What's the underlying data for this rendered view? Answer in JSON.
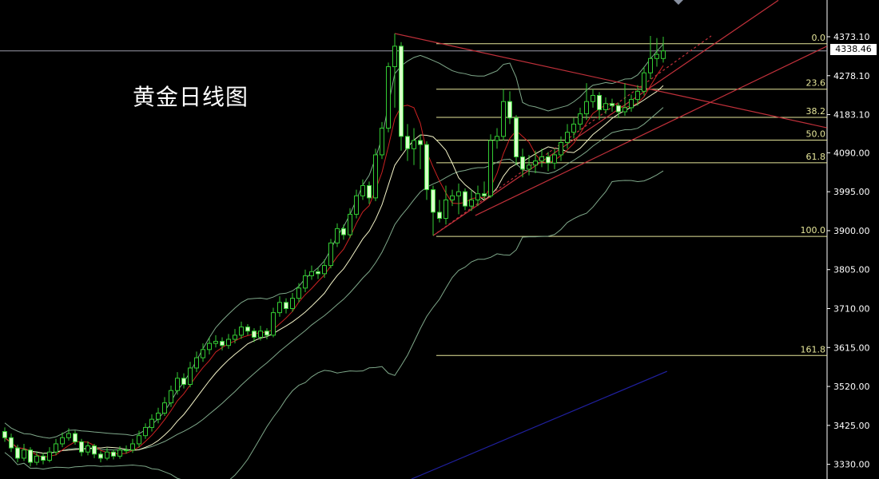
{
  "chart_data": {
    "type": "candlestick",
    "title": "黄金日线图",
    "ylim": [
      3315,
      4465
    ],
    "y_ticks": [
      "4373.10",
      "4278.10",
      "4183.10",
      "4090.00",
      "3995.00",
      "3900.00",
      "3805.00",
      "3710.00",
      "3615.00",
      "3520.00",
      "3425.00",
      "3330.00"
    ],
    "current_price": "4338.46",
    "grid": false,
    "candle_format": [
      "open",
      "high",
      "low",
      "close"
    ],
    "candles": [
      [
        3410,
        3420,
        3385,
        3395
      ],
      [
        3395,
        3405,
        3360,
        3370
      ],
      [
        3370,
        3378,
        3335,
        3345
      ],
      [
        3345,
        3380,
        3338,
        3365
      ],
      [
        3365,
        3372,
        3325,
        3335
      ],
      [
        3335,
        3362,
        3328,
        3350
      ],
      [
        3350,
        3358,
        3330,
        3340
      ],
      [
        3340,
        3372,
        3335,
        3360
      ],
      [
        3360,
        3392,
        3352,
        3380
      ],
      [
        3380,
        3408,
        3372,
        3395
      ],
      [
        3395,
        3418,
        3388,
        3405
      ],
      [
        3405,
        3412,
        3378,
        3385
      ],
      [
        3385,
        3392,
        3350,
        3360
      ],
      [
        3360,
        3386,
        3352,
        3375
      ],
      [
        3375,
        3380,
        3345,
        3355
      ],
      [
        3355,
        3362,
        3335,
        3345
      ],
      [
        3345,
        3370,
        3340,
        3360
      ],
      [
        3360,
        3366,
        3342,
        3350
      ],
      [
        3350,
        3374,
        3344,
        3365
      ],
      [
        3365,
        3376,
        3356,
        3365
      ],
      [
        3365,
        3392,
        3358,
        3380
      ],
      [
        3380,
        3412,
        3372,
        3400
      ],
      [
        3400,
        3430,
        3392,
        3420
      ],
      [
        3420,
        3452,
        3410,
        3440
      ],
      [
        3440,
        3468,
        3430,
        3455
      ],
      [
        3455,
        3494,
        3448,
        3480
      ],
      [
        3480,
        3522,
        3470,
        3510
      ],
      [
        3510,
        3555,
        3500,
        3540
      ],
      [
        3540,
        3552,
        3515,
        3525
      ],
      [
        3525,
        3580,
        3518,
        3565
      ],
      [
        3565,
        3605,
        3555,
        3590
      ],
      [
        3590,
        3625,
        3580,
        3610
      ],
      [
        3610,
        3640,
        3598,
        3625
      ],
      [
        3625,
        3645,
        3615,
        3630
      ],
      [
        3630,
        3640,
        3608,
        3620
      ],
      [
        3620,
        3648,
        3612,
        3635
      ],
      [
        3635,
        3660,
        3625,
        3645
      ],
      [
        3645,
        3678,
        3636,
        3665
      ],
      [
        3665,
        3672,
        3645,
        3655
      ],
      [
        3655,
        3662,
        3628,
        3640
      ],
      [
        3640,
        3668,
        3632,
        3655
      ],
      [
        3655,
        3662,
        3635,
        3645
      ],
      [
        3645,
        3712,
        3640,
        3700
      ],
      [
        3700,
        3740,
        3690,
        3725
      ],
      [
        3725,
        3735,
        3698,
        3710
      ],
      [
        3710,
        3748,
        3702,
        3735
      ],
      [
        3735,
        3772,
        3725,
        3760
      ],
      [
        3760,
        3805,
        3750,
        3790
      ],
      [
        3790,
        3815,
        3780,
        3800
      ],
      [
        3800,
        3810,
        3782,
        3795
      ],
      [
        3795,
        3830,
        3785,
        3815
      ],
      [
        3815,
        3880,
        3808,
        3870
      ],
      [
        3870,
        3918,
        3860,
        3905
      ],
      [
        3905,
        3915,
        3878,
        3890
      ],
      [
        3890,
        3955,
        3882,
        3940
      ],
      [
        3940,
        4000,
        3930,
        3985
      ],
      [
        3985,
        4025,
        3975,
        4010
      ],
      [
        4010,
        4020,
        3965,
        3980
      ],
      [
        3980,
        4100,
        3972,
        4085
      ],
      [
        4085,
        4165,
        4075,
        4150
      ],
      [
        4150,
        4310,
        4140,
        4300
      ],
      [
        4300,
        4381,
        4200,
        4350
      ],
      [
        4350,
        4360,
        4095,
        4130
      ],
      [
        4130,
        4160,
        4070,
        4100
      ],
      [
        4100,
        4150,
        4060,
        4120
      ],
      [
        4120,
        4135,
        4050,
        4110
      ],
      [
        4110,
        4118,
        3975,
        4000
      ],
      [
        4000,
        4010,
        3888,
        3945
      ],
      [
        3945,
        3975,
        3920,
        3930
      ],
      [
        3930,
        4010,
        3915,
        3975
      ],
      [
        3975,
        4000,
        3960,
        3985
      ],
      [
        3985,
        4015,
        3940,
        3995
      ],
      [
        3995,
        4003,
        3950,
        3960
      ],
      [
        3960,
        4000,
        3948,
        3975
      ],
      [
        3975,
        4010,
        3960,
        3990
      ],
      [
        3990,
        4020,
        3975,
        3985
      ],
      [
        3985,
        4135,
        3980,
        4120
      ],
      [
        4120,
        4150,
        4100,
        4130
      ],
      [
        4130,
        4245,
        4120,
        4215
      ],
      [
        4215,
        4240,
        4160,
        4175
      ],
      [
        4175,
        4182,
        4060,
        4080
      ],
      [
        4080,
        4100,
        4030,
        4050
      ],
      [
        4050,
        4085,
        4035,
        4060
      ],
      [
        4060,
        4095,
        4040,
        4070
      ],
      [
        4070,
        4100,
        4055,
        4080
      ],
      [
        4080,
        4092,
        4045,
        4065
      ],
      [
        4065,
        4100,
        4050,
        4085
      ],
      [
        4085,
        4130,
        4070,
        4115
      ],
      [
        4115,
        4160,
        4100,
        4140
      ],
      [
        4140,
        4175,
        4125,
        4160
      ],
      [
        4160,
        4200,
        4145,
        4185
      ],
      [
        4185,
        4260,
        4170,
        4215
      ],
      [
        4215,
        4245,
        4200,
        4230
      ],
      [
        4230,
        4238,
        4170,
        4195
      ],
      [
        4195,
        4225,
        4185,
        4210
      ],
      [
        4210,
        4222,
        4190,
        4205
      ],
      [
        4205,
        4212,
        4175,
        4190
      ],
      [
        4190,
        4260,
        4180,
        4200
      ],
      [
        4200,
        4232,
        4190,
        4220
      ],
      [
        4220,
        4255,
        4205,
        4240
      ],
      [
        4240,
        4300,
        4230,
        4285
      ],
      [
        4285,
        4375,
        4270,
        4320
      ],
      [
        4320,
        4370,
        4300,
        4330
      ],
      [
        4320,
        4373,
        4310,
        4338.46
      ]
    ],
    "fibonacci": {
      "high": 4356,
      "low": 3886,
      "levels": [
        {
          "label": "0.0",
          "ratio": 0
        },
        {
          "label": "23.6",
          "ratio": 0.236
        },
        {
          "label": "38.2",
          "ratio": 0.382
        },
        {
          "label": "50.0",
          "ratio": 0.5
        },
        {
          "label": "61.8",
          "ratio": 0.618
        },
        {
          "label": "100.0",
          "ratio": 1
        },
        {
          "label": "161.8",
          "ratio": 1.618
        }
      ]
    },
    "colors": {
      "background": "#000000",
      "bull_candle": "#33cc33",
      "bear_candle_fill": "#d8ffc8",
      "fast_ma": "#cc2222",
      "slow_ma": "#f4f4c8",
      "bollinger": "#7fa88a",
      "fib": "#e6e69a",
      "trendline": "#c0303a",
      "channel_line": "#2020a0",
      "axis": "#ffffff",
      "current_price_line": "#9a9aa8"
    }
  }
}
